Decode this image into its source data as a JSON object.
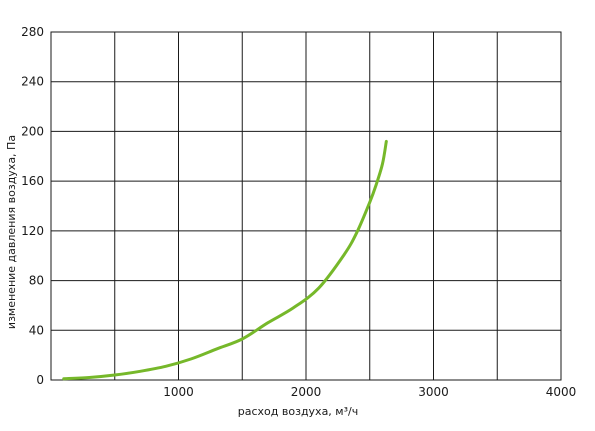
{
  "chart_data": {
    "type": "line",
    "title": "",
    "xlabel": "расход воздуха, м³/ч",
    "ylabel": "изменение давления воздуха, Па",
    "xlim": [
      0,
      4000
    ],
    "ylim": [
      0,
      280
    ],
    "x_ticks": [
      1000,
      2000,
      3000,
      4000
    ],
    "x_tick_labels": [
      "1000",
      "2000",
      "3000",
      "4000"
    ],
    "y_ticks": [
      0,
      40,
      80,
      120,
      160,
      200,
      240,
      280
    ],
    "y_tick_labels": [
      "0",
      "40",
      "80",
      "120",
      "160",
      "200",
      "240",
      "280"
    ],
    "x_gridlines": [
      500,
      1000,
      1500,
      2000,
      2500,
      3000,
      3500,
      4000
    ],
    "y_gridlines": [
      40,
      80,
      120,
      160,
      200,
      240,
      280
    ],
    "grid": true,
    "series": [
      {
        "color": "#76b82a",
        "x": [
          100,
          300,
          500,
          700,
          900,
          1100,
          1300,
          1500,
          1700,
          1900,
          2100,
          2300,
          2400,
          2500,
          2550,
          2600,
          2630
        ],
        "y": [
          1,
          2,
          4,
          7,
          11,
          17,
          25,
          33,
          46,
          58,
          74,
          101,
          119,
          143,
          157,
          174,
          192
        ]
      }
    ]
  }
}
